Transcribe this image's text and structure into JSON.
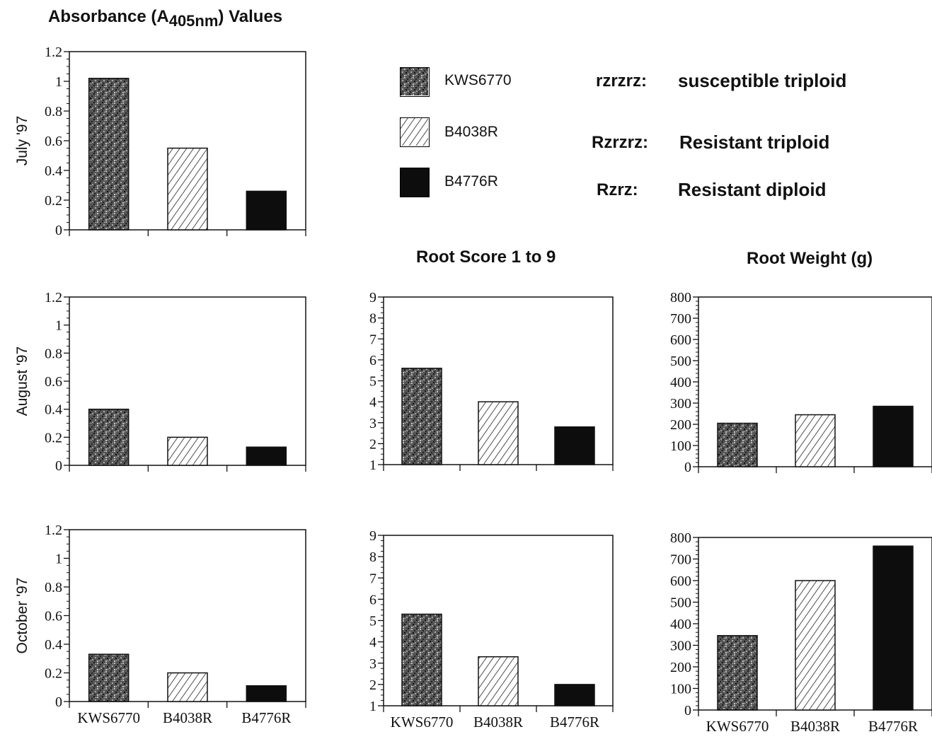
{
  "figure": {
    "heading_main": "Absorbance (A",
    "heading_sub": "405nm",
    "heading_end": ") Values",
    "root_score_title": "Root Score 1 to 9",
    "root_weight_title": "Root Weight (g)"
  },
  "legend": [
    {
      "label": "KWS6770",
      "pattern": "speckle"
    },
    {
      "label": "B4038R",
      "pattern": "hatch"
    },
    {
      "label": "B4776R",
      "pattern": "solid"
    }
  ],
  "genotypes": [
    {
      "code": "rzrzrz:",
      "desc": "susceptible triploid"
    },
    {
      "code": "Rzrzrz:",
      "desc": "Resistant triploid"
    },
    {
      "code": "Rzrz:",
      "desc": "Resistant diploid"
    }
  ],
  "colors": {
    "axis": "#111111",
    "speckle_dark": "#2a2a2a",
    "speckle_light": "#9a9a9a",
    "hatch": "#222222",
    "solid": "#0d0d0d"
  },
  "chart_data": [
    {
      "id": "abs-july",
      "type": "bar",
      "ylabel": "July '97",
      "categories": [
        "KWS6770",
        "B4038R",
        "B4776R"
      ],
      "values": [
        1.02,
        0.55,
        0.26
      ],
      "ylim": [
        0,
        1.2
      ],
      "yticks": [
        "0",
        "0.2",
        "0.4",
        "0.6",
        "0.8",
        "1",
        "1.2"
      ],
      "show_cat_labels": false
    },
    {
      "id": "abs-august",
      "type": "bar",
      "ylabel": "August '97",
      "categories": [
        "KWS6770",
        "B4038R",
        "B4776R"
      ],
      "values": [
        0.4,
        0.2,
        0.13
      ],
      "ylim": [
        0,
        1.2
      ],
      "yticks": [
        "0",
        "0.2",
        "0.4",
        "0.6",
        "0.8",
        "1",
        "1.2"
      ],
      "show_cat_labels": false
    },
    {
      "id": "abs-october",
      "type": "bar",
      "ylabel": "October '97",
      "categories": [
        "KWS6770",
        "B4038R",
        "B4776R"
      ],
      "values": [
        0.33,
        0.2,
        0.11
      ],
      "ylim": [
        0,
        1.2
      ],
      "yticks": [
        "0",
        "0.2",
        "0.4",
        "0.6",
        "0.8",
        "1",
        "1.2"
      ],
      "show_cat_labels": true
    },
    {
      "id": "score-august",
      "type": "bar",
      "ylabel": "",
      "categories": [
        "KWS6770",
        "B4038R",
        "B4776R"
      ],
      "values": [
        5.6,
        4.0,
        2.8
      ],
      "ylim": [
        1,
        9
      ],
      "yticks": [
        "1",
        "2",
        "3",
        "4",
        "5",
        "6",
        "7",
        "8",
        "9"
      ],
      "show_cat_labels": false
    },
    {
      "id": "score-october",
      "type": "bar",
      "ylabel": "",
      "categories": [
        "KWS6770",
        "B4038R",
        "B4776R"
      ],
      "values": [
        5.3,
        3.3,
        2.0
      ],
      "ylim": [
        1,
        9
      ],
      "yticks": [
        "1",
        "2",
        "3",
        "4",
        "5",
        "6",
        "7",
        "8",
        "9"
      ],
      "show_cat_labels": true
    },
    {
      "id": "weight-august",
      "type": "bar",
      "ylabel": "",
      "categories": [
        "KWS6770",
        "B4038R",
        "B4776R"
      ],
      "values": [
        205,
        245,
        285
      ],
      "ylim": [
        0,
        800
      ],
      "yticks": [
        "0",
        "100",
        "200",
        "300",
        "400",
        "500",
        "600",
        "700",
        "800"
      ],
      "show_cat_labels": false
    },
    {
      "id": "weight-october",
      "type": "bar",
      "ylabel": "",
      "categories": [
        "KWS6770",
        "B4038R",
        "B4776R"
      ],
      "values": [
        345,
        600,
        760
      ],
      "ylim": [
        0,
        800
      ],
      "yticks": [
        "0",
        "100",
        "200",
        "300",
        "400",
        "500",
        "600",
        "700",
        "800"
      ],
      "show_cat_labels": true
    }
  ]
}
